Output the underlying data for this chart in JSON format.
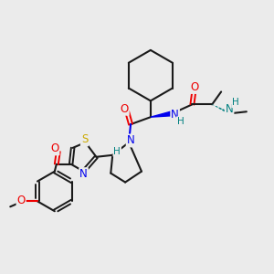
{
  "bg_color": "#ebebeb",
  "bond_color": "#1a1a1a",
  "atom_colors": {
    "N": "#0000ee",
    "O": "#ee0000",
    "S": "#ccaa00",
    "H": "#008080",
    "C": "#1a1a1a"
  },
  "figsize": [
    3.0,
    3.0
  ],
  "dpi": 100
}
